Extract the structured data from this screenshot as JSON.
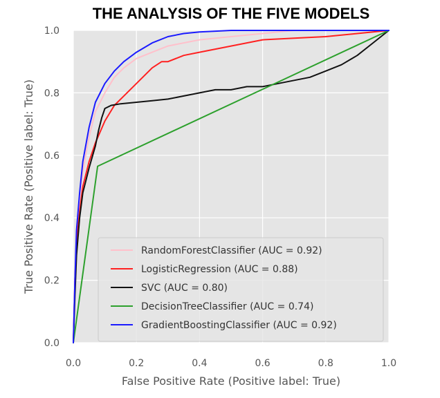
{
  "chart_data": {
    "type": "line",
    "title": "THE ANALYSIS OF THE FIVE MODELS",
    "xlabel": "False Positive Rate (Positive label: True)",
    "ylabel": "True Positive Rate (Positive label: True)",
    "xlim": [
      0,
      1
    ],
    "ylim": [
      0,
      1
    ],
    "xticks": [
      "0.0",
      "0.2",
      "0.4",
      "0.6",
      "0.8",
      "1.0"
    ],
    "yticks": [
      "0.0",
      "0.2",
      "0.4",
      "0.6",
      "0.8",
      "1.0"
    ],
    "grid": true,
    "legend_position": "lower-right",
    "series": [
      {
        "name": "RandomForestClassifier (AUC = 0.92)",
        "color": "#ffc0cb",
        "x": [
          0,
          0.005,
          0.01,
          0.02,
          0.03,
          0.05,
          0.07,
          0.1,
          0.13,
          0.16,
          0.2,
          0.25,
          0.3,
          0.4,
          0.5,
          0.6,
          0.7,
          0.8,
          0.9,
          1.0
        ],
        "y": [
          0,
          0.2,
          0.35,
          0.45,
          0.55,
          0.66,
          0.74,
          0.8,
          0.85,
          0.88,
          0.91,
          0.93,
          0.95,
          0.97,
          0.98,
          0.99,
          1.0,
          1.0,
          1.0,
          1.0
        ]
      },
      {
        "name": "LogisticRegression (AUC = 0.88)",
        "color": "#ff2020",
        "x": [
          0,
          0.005,
          0.01,
          0.02,
          0.03,
          0.05,
          0.07,
          0.1,
          0.13,
          0.16,
          0.19,
          0.22,
          0.25,
          0.28,
          0.3,
          0.35,
          0.4,
          0.45,
          0.5,
          0.55,
          0.6,
          0.7,
          0.8,
          0.9,
          0.95,
          1.0
        ],
        "y": [
          0,
          0.2,
          0.32,
          0.42,
          0.5,
          0.58,
          0.64,
          0.71,
          0.76,
          0.79,
          0.82,
          0.85,
          0.88,
          0.9,
          0.9,
          0.92,
          0.93,
          0.94,
          0.95,
          0.96,
          0.97,
          0.975,
          0.98,
          0.99,
          0.995,
          1.0
        ]
      },
      {
        "name": "SVC (AUC = 0.80)",
        "color": "#111111",
        "x": [
          0,
          0.005,
          0.01,
          0.02,
          0.03,
          0.05,
          0.07,
          0.08,
          0.09,
          0.1,
          0.12,
          0.15,
          0.2,
          0.25,
          0.3,
          0.35,
          0.4,
          0.45,
          0.5,
          0.55,
          0.6,
          0.65,
          0.7,
          0.75,
          0.8,
          0.85,
          0.9,
          0.95,
          1.0
        ],
        "y": [
          0,
          0.15,
          0.28,
          0.4,
          0.48,
          0.56,
          0.63,
          0.68,
          0.72,
          0.75,
          0.76,
          0.765,
          0.77,
          0.775,
          0.78,
          0.79,
          0.8,
          0.81,
          0.81,
          0.82,
          0.82,
          0.83,
          0.84,
          0.85,
          0.87,
          0.89,
          0.92,
          0.96,
          1.0
        ]
      },
      {
        "name": "DecisionTreeClassifier (AUC = 0.74)",
        "color": "#2ca02c",
        "x": [
          0,
          0.077,
          1.0
        ],
        "y": [
          0,
          0.565,
          1.0
        ]
      },
      {
        "name": "GradientBoostingClassifier (AUC = 0.92)",
        "color": "#1a1aff",
        "x": [
          0,
          0.005,
          0.01,
          0.02,
          0.03,
          0.05,
          0.07,
          0.1,
          0.13,
          0.16,
          0.2,
          0.25,
          0.3,
          0.35,
          0.4,
          0.5,
          0.6,
          0.7,
          0.8,
          0.9,
          1.0
        ],
        "y": [
          0,
          0.2,
          0.36,
          0.48,
          0.58,
          0.69,
          0.77,
          0.83,
          0.87,
          0.9,
          0.93,
          0.96,
          0.98,
          0.99,
          0.995,
          1.0,
          1.0,
          1.0,
          1.0,
          1.0,
          1.0
        ]
      }
    ]
  }
}
